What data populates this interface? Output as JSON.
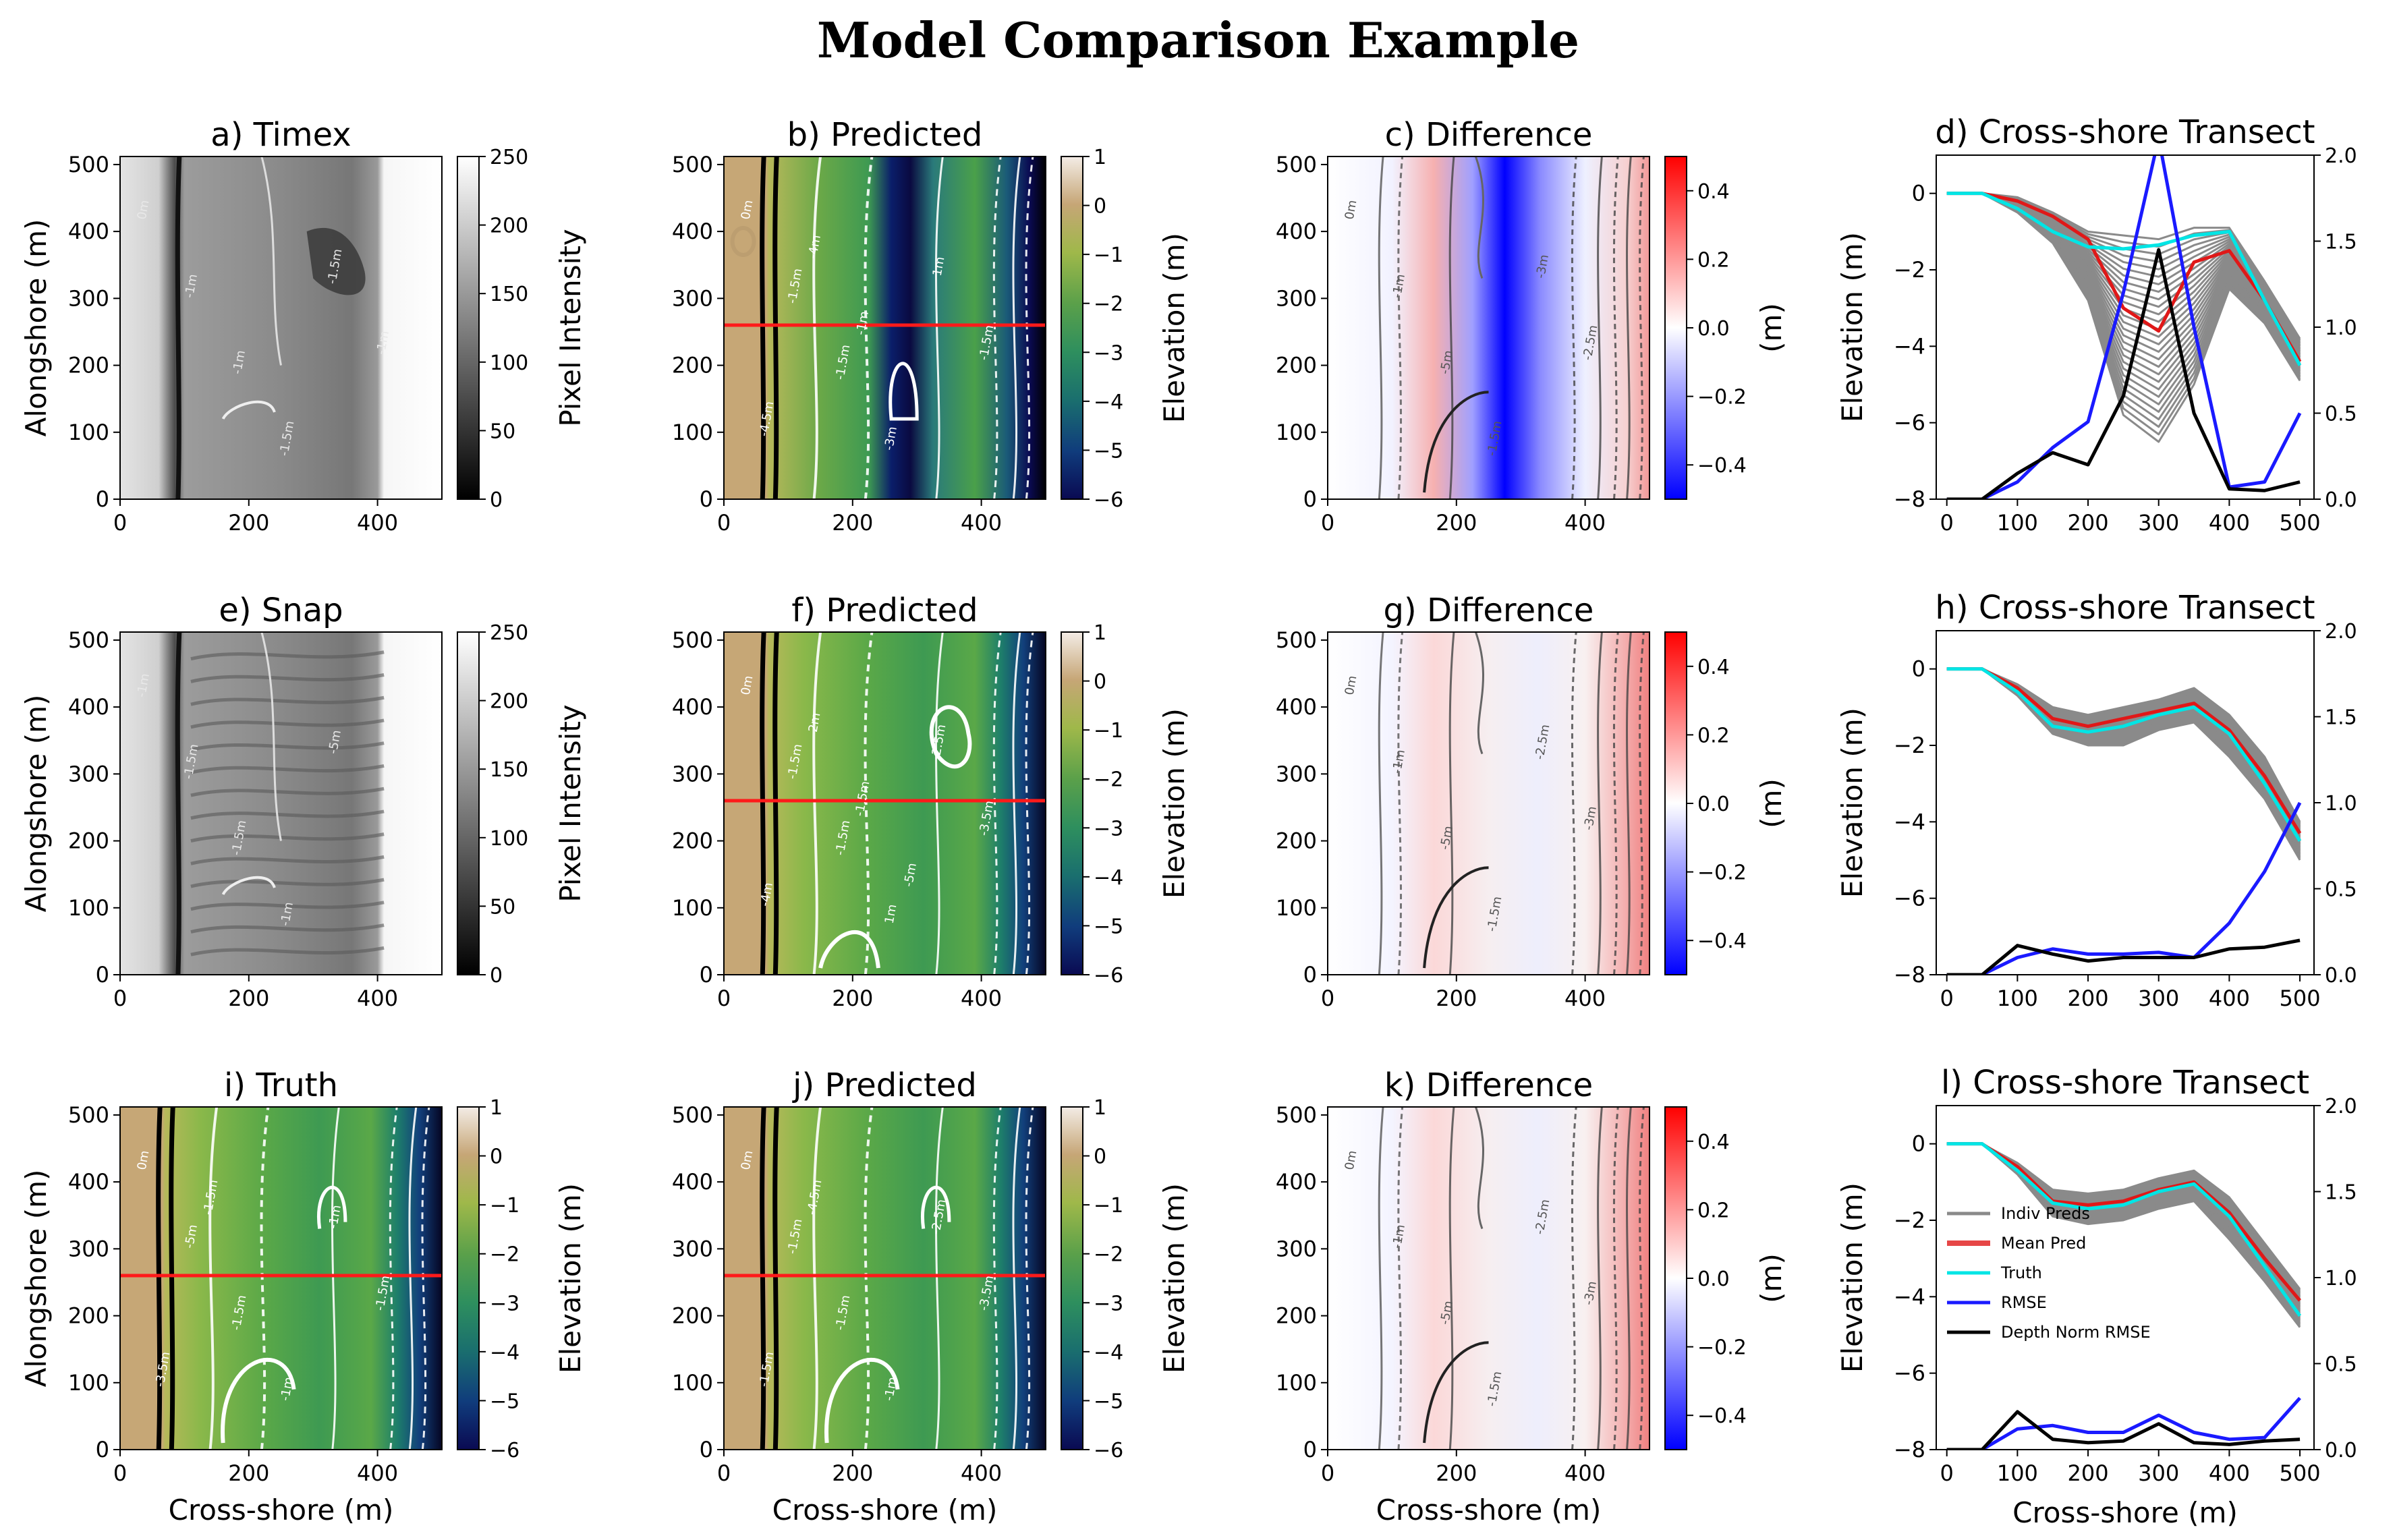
{
  "figure": {
    "suptitle": "Model Comparison Example",
    "shared_labels": {
      "alongshore": "Alongshore (m)",
      "cross_shore": "Cross-shore (m)",
      "elevation": "Elevation (m)",
      "pixel_intensity": "Pixel Intensity",
      "diff_units": "(m)"
    },
    "legend": [
      "Indiv Preds",
      "Mean Pred",
      "Truth",
      "RMSE",
      "Depth Norm RMSE"
    ]
  },
  "colors": {
    "sand": "#c6a676",
    "mean_pred": "#e01818",
    "truth": "#00e5e5",
    "rmse": "#1a1aff",
    "dn_rmse": "#000000",
    "indiv": "#8a8a8a",
    "transect": "#ff1a1a"
  },
  "chart_data": [
    {
      "id": "a",
      "type": "heatmap",
      "kind": "image",
      "variant": 1,
      "title": "a) Timex",
      "xlabel": "",
      "ylabel": "Alongshore (m)",
      "cbar_label": "Pixel Intensity",
      "x_ticks": [
        "0",
        "200",
        "400"
      ],
      "y_ticks": [
        "0",
        "100",
        "200",
        "300",
        "400",
        "500"
      ],
      "cbar_ticks": [
        "0",
        "50",
        "100",
        "150",
        "200",
        "250"
      ],
      "xlim": [
        0,
        500
      ],
      "ylim": [
        0,
        512
      ],
      "clim": [
        0,
        250
      ],
      "contour_labels": [
        "0m",
        "-1m",
        "-1m",
        "-1.5m",
        "-1.5m",
        "-1m"
      ]
    },
    {
      "id": "b",
      "type": "heatmap",
      "kind": "elev",
      "variant": 1,
      "title": "b) Predicted",
      "xlabel": "",
      "ylabel": "",
      "cbar_label": "Elevation (m)",
      "x_ticks": [
        "0",
        "200",
        "400"
      ],
      "y_ticks": [
        "0",
        "100",
        "200",
        "300",
        "400",
        "500"
      ],
      "cbar_ticks": [
        "1",
        "0",
        "−1",
        "−2",
        "−3",
        "−4",
        "−5",
        "−6"
      ],
      "xlim": [
        0,
        500
      ],
      "ylim": [
        0,
        512
      ],
      "clim": [
        -6,
        1
      ],
      "transect_y": 260,
      "contour_labels": [
        "0m",
        "-1.5m",
        "-1.5m",
        "-3m",
        "1m",
        "-1.5m",
        "-4.5m",
        "-4m",
        "-1m"
      ]
    },
    {
      "id": "c",
      "type": "heatmap",
      "kind": "diff",
      "variant": 1,
      "title": "c) Difference",
      "xlabel": "",
      "ylabel": "",
      "cbar_label": "(m)",
      "x_ticks": [
        "0",
        "200",
        "400"
      ],
      "y_ticks": [
        "0",
        "100",
        "200",
        "300",
        "400",
        "500"
      ],
      "cbar_ticks": [
        "0.4",
        "0.2",
        "0.0",
        "−0.2",
        "−0.4"
      ],
      "xlim": [
        0,
        500
      ],
      "ylim": [
        0,
        512
      ],
      "clim": [
        -0.5,
        0.5
      ],
      "contour_labels": [
        "0m",
        "-1m",
        "-5m",
        "-1.5m",
        "-3m",
        "-2.5m"
      ]
    },
    {
      "id": "d",
      "type": "line",
      "title": "d) Cross-shore Transect",
      "xlabel": "",
      "ylabel": "Elevation (m)",
      "x_ticks": [
        "0",
        "100",
        "200",
        "300",
        "400",
        "500"
      ],
      "y_ticks": [
        "0",
        "−2",
        "−4",
        "−6",
        "−8"
      ],
      "y2_ticks": [
        "2.0",
        "1.5",
        "1.0",
        "0.5",
        "0.0"
      ],
      "xlim": [
        -15,
        520
      ],
      "ylim": [
        -8,
        1
      ],
      "y2lim": [
        0,
        2
      ],
      "x": [
        0,
        50,
        100,
        150,
        200,
        250,
        300,
        350,
        400,
        450,
        500
      ],
      "series": [
        {
          "name": "Mean Pred",
          "axis": "left",
          "values": [
            0,
            0,
            -0.2,
            -0.6,
            -1.2,
            -3.0,
            -3.6,
            -1.8,
            -1.5,
            -2.8,
            -4.4
          ]
        },
        {
          "name": "Truth",
          "axis": "left",
          "values": [
            0,
            0,
            -0.4,
            -1.0,
            -1.4,
            -1.45,
            -1.35,
            -1.1,
            -1.0,
            -2.8,
            -4.5
          ]
        },
        {
          "name": "RMSE",
          "axis": "right",
          "values": [
            0,
            0,
            0.1,
            0.3,
            0.45,
            1.2,
            2.1,
            1.0,
            0.07,
            0.1,
            0.5
          ]
        },
        {
          "name": "Depth Norm RMSE",
          "axis": "right",
          "values": [
            0,
            0,
            0.15,
            0.27,
            0.2,
            0.6,
            1.45,
            0.5,
            0.06,
            0.05,
            0.1
          ]
        }
      ],
      "spread": {
        "upper": [
          0,
          0,
          -0.1,
          -0.5,
          -1.0,
          -1.1,
          -1.2,
          -0.9,
          -0.9,
          -2.3,
          -3.8
        ],
        "lower": [
          0,
          0,
          -0.5,
          -1.3,
          -2.8,
          -5.8,
          -6.5,
          -5.0,
          -2.5,
          -3.4,
          -4.9
        ]
      }
    },
    {
      "id": "e",
      "type": "heatmap",
      "kind": "image",
      "variant": 2,
      "title": "e) Snap",
      "xlabel": "",
      "ylabel": "Alongshore (m)",
      "cbar_label": "Pixel Intensity",
      "x_ticks": [
        "0",
        "200",
        "400"
      ],
      "y_ticks": [
        "0",
        "100",
        "200",
        "300",
        "400",
        "500"
      ],
      "cbar_ticks": [
        "0",
        "50",
        "100",
        "150",
        "200",
        "250"
      ],
      "xlim": [
        0,
        500
      ],
      "ylim": [
        0,
        512
      ],
      "clim": [
        0,
        250
      ],
      "contour_labels": [
        "-1m",
        "-1.5m",
        "-1.5m",
        "-1m",
        "-5m"
      ]
    },
    {
      "id": "f",
      "type": "heatmap",
      "kind": "elev",
      "variant": 2,
      "title": "f) Predicted",
      "xlabel": "",
      "ylabel": "",
      "cbar_label": "Elevation (m)",
      "x_ticks": [
        "0",
        "200",
        "400"
      ],
      "y_ticks": [
        "0",
        "100",
        "200",
        "300",
        "400",
        "500"
      ],
      "cbar_ticks": [
        "1",
        "0",
        "−1",
        "−2",
        "−3",
        "−4",
        "−5",
        "−6"
      ],
      "xlim": [
        0,
        500
      ],
      "ylim": [
        0,
        512
      ],
      "clim": [
        -6,
        1
      ],
      "transect_y": 260,
      "contour_labels": [
        "0m",
        "-1.5m",
        "-1.5m",
        "1m",
        "-2.5m",
        "-3.5m",
        "-4m",
        "2m",
        "-1.5m",
        "-5m"
      ]
    },
    {
      "id": "g",
      "type": "heatmap",
      "kind": "diff",
      "variant": 2,
      "title": "g) Difference",
      "xlabel": "",
      "ylabel": "",
      "cbar_label": "(m)",
      "x_ticks": [
        "0",
        "200",
        "400"
      ],
      "y_ticks": [
        "0",
        "100",
        "200",
        "300",
        "400",
        "500"
      ],
      "cbar_ticks": [
        "0.4",
        "0.2",
        "0.0",
        "−0.2",
        "−0.4"
      ],
      "xlim": [
        0,
        500
      ],
      "ylim": [
        0,
        512
      ],
      "clim": [
        -0.5,
        0.5
      ],
      "contour_labels": [
        "0m",
        "-1m",
        "-5m",
        "-1.5m",
        "-2.5m",
        "-3m"
      ]
    },
    {
      "id": "h",
      "type": "line",
      "title": "h) Cross-shore Transect",
      "xlabel": "",
      "ylabel": "Elevation (m)",
      "x_ticks": [
        "0",
        "100",
        "200",
        "300",
        "400",
        "500"
      ],
      "y_ticks": [
        "0",
        "−2",
        "−4",
        "−6",
        "−8"
      ],
      "y2_ticks": [
        "2.0",
        "1.5",
        "1.0",
        "0.5",
        "0.0"
      ],
      "xlim": [
        -15,
        520
      ],
      "ylim": [
        -8,
        1
      ],
      "y2lim": [
        0,
        2
      ],
      "x": [
        0,
        50,
        100,
        150,
        200,
        250,
        300,
        350,
        400,
        450,
        500
      ],
      "series": [
        {
          "name": "Mean Pred",
          "axis": "left",
          "values": [
            0,
            0,
            -0.5,
            -1.3,
            -1.5,
            -1.3,
            -1.1,
            -0.9,
            -1.6,
            -2.8,
            -4.3
          ]
        },
        {
          "name": "Truth",
          "axis": "left",
          "values": [
            0,
            0,
            -0.6,
            -1.5,
            -1.65,
            -1.5,
            -1.2,
            -1.0,
            -1.7,
            -3.0,
            -4.5
          ]
        },
        {
          "name": "RMSE",
          "axis": "right",
          "values": [
            0,
            0,
            0.1,
            0.15,
            0.12,
            0.12,
            0.13,
            0.1,
            0.3,
            0.6,
            1.0
          ]
        },
        {
          "name": "Depth Norm RMSE",
          "axis": "right",
          "values": [
            0,
            0,
            0.17,
            0.12,
            0.08,
            0.1,
            0.1,
            0.1,
            0.15,
            0.16,
            0.2
          ]
        }
      ],
      "spread": {
        "upper": [
          0,
          0,
          -0.4,
          -1.0,
          -1.2,
          -1.0,
          -0.8,
          -0.5,
          -1.2,
          -2.3,
          -4.0
        ],
        "lower": [
          0,
          0,
          -0.7,
          -1.7,
          -2.0,
          -2.0,
          -1.6,
          -1.4,
          -2.3,
          -3.4,
          -5.0
        ]
      }
    },
    {
      "id": "i",
      "type": "heatmap",
      "kind": "elev",
      "variant": 3,
      "title": "i) Truth",
      "xlabel": "Cross-shore (m)",
      "ylabel": "Alongshore (m)",
      "cbar_label": "Elevation (m)",
      "x_ticks": [
        "0",
        "200",
        "400"
      ],
      "y_ticks": [
        "0",
        "100",
        "200",
        "300",
        "400",
        "500"
      ],
      "cbar_ticks": [
        "1",
        "0",
        "−1",
        "−2",
        "−3",
        "−4",
        "−5",
        "−6"
      ],
      "xlim": [
        0,
        500
      ],
      "ylim": [
        0,
        512
      ],
      "clim": [
        -6,
        1
      ],
      "transect_y": 260,
      "contour_labels": [
        "0m",
        "-5m",
        "-1.5m",
        "-1m",
        "-1m",
        "-1.5m",
        "-3.5m",
        "-1.5m"
      ]
    },
    {
      "id": "j",
      "type": "heatmap",
      "kind": "elev",
      "variant": 3,
      "title": "j) Predicted",
      "xlabel": "Cross-shore (m)",
      "ylabel": "",
      "cbar_label": "Elevation (m)",
      "x_ticks": [
        "0",
        "200",
        "400"
      ],
      "y_ticks": [
        "0",
        "100",
        "200",
        "300",
        "400",
        "500"
      ],
      "cbar_ticks": [
        "1",
        "0",
        "−1",
        "−2",
        "−3",
        "−4",
        "−5",
        "−6"
      ],
      "xlim": [
        0,
        500
      ],
      "ylim": [
        0,
        512
      ],
      "clim": [
        -6,
        1
      ],
      "transect_y": 260,
      "contour_labels": [
        "0m",
        "-1.5m",
        "-1.5m",
        "-1m",
        "-2.5m",
        "-3.5m",
        "-1.5m",
        "-4.5m"
      ]
    },
    {
      "id": "k",
      "type": "heatmap",
      "kind": "diff",
      "variant": 3,
      "title": "k) Difference",
      "xlabel": "Cross-shore (m)",
      "ylabel": "",
      "cbar_label": "(m)",
      "x_ticks": [
        "0",
        "200",
        "400"
      ],
      "y_ticks": [
        "0",
        "100",
        "200",
        "300",
        "400",
        "500"
      ],
      "cbar_ticks": [
        "0.4",
        "0.2",
        "0.0",
        "−0.2",
        "−0.4"
      ],
      "xlim": [
        0,
        500
      ],
      "ylim": [
        0,
        512
      ],
      "clim": [
        -0.5,
        0.5
      ],
      "contour_labels": [
        "0m",
        "-1m",
        "-5m",
        "-1.5m",
        "-2.5m",
        "-3m"
      ]
    },
    {
      "id": "l",
      "type": "line",
      "title": "l) Cross-shore Transect",
      "xlabel": "Cross-shore (m)",
      "ylabel": "Elevation (m)",
      "x_ticks": [
        "0",
        "100",
        "200",
        "300",
        "400",
        "500"
      ],
      "y_ticks": [
        "0",
        "−2",
        "−4",
        "−6",
        "−8"
      ],
      "y2_ticks": [
        "2.0",
        "1.5",
        "1.0",
        "0.5",
        "0.0"
      ],
      "xlim": [
        -15,
        520
      ],
      "ylim": [
        -8,
        1
      ],
      "y2lim": [
        0,
        2
      ],
      "x": [
        0,
        50,
        100,
        150,
        200,
        250,
        300,
        350,
        400,
        450,
        500
      ],
      "legend": true,
      "series": [
        {
          "name": "Mean Pred",
          "axis": "left",
          "values": [
            0,
            0,
            -0.6,
            -1.5,
            -1.6,
            -1.5,
            -1.2,
            -1.0,
            -1.8,
            -3.0,
            -4.1
          ]
        },
        {
          "name": "Truth",
          "axis": "left",
          "values": [
            0,
            0,
            -0.7,
            -1.55,
            -1.7,
            -1.6,
            -1.25,
            -1.05,
            -1.9,
            -3.2,
            -4.5
          ]
        },
        {
          "name": "RMSE",
          "axis": "right",
          "values": [
            0,
            0,
            0.12,
            0.14,
            0.1,
            0.1,
            0.2,
            0.1,
            0.06,
            0.07,
            0.3
          ]
        },
        {
          "name": "Depth Norm RMSE",
          "axis": "right",
          "values": [
            0,
            0,
            0.22,
            0.06,
            0.04,
            0.05,
            0.15,
            0.04,
            0.03,
            0.05,
            0.06
          ]
        }
      ],
      "spread": {
        "upper": [
          0,
          0,
          -0.5,
          -1.2,
          -1.3,
          -1.2,
          -0.9,
          -0.7,
          -1.4,
          -2.6,
          -3.8
        ],
        "lower": [
          0,
          0,
          -0.8,
          -1.9,
          -2.1,
          -2.0,
          -1.7,
          -1.5,
          -2.5,
          -3.6,
          -4.8
        ]
      }
    }
  ]
}
